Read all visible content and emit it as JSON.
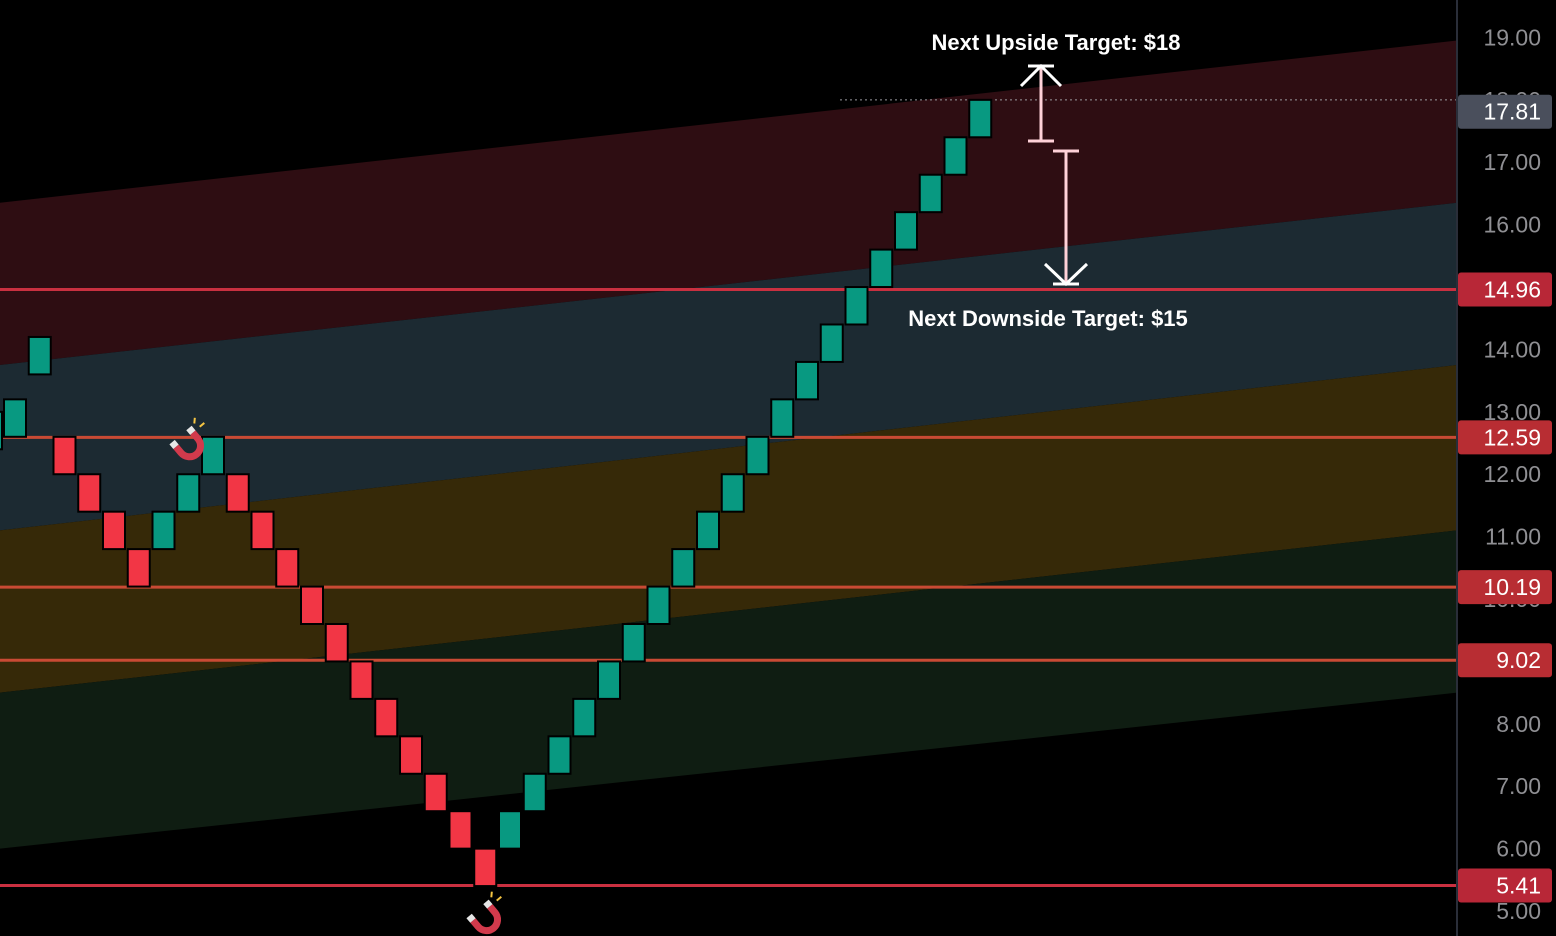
{
  "chart_data": {
    "type": "renko",
    "brick_size": 1,
    "y_range": [
      4.6,
      19.6
    ],
    "y_ticks": [
      "19.00",
      "18.00",
      "17.00",
      "16.00",
      "14.00",
      "13.00",
      "12.00",
      "11.00",
      "10.00",
      "8.00",
      "7.00",
      "6.00",
      "5.00"
    ],
    "y_tick_values": [
      19,
      18,
      17,
      16,
      14,
      13,
      12,
      11,
      10,
      8,
      7,
      6,
      5
    ],
    "current_price": {
      "label": "17.81",
      "value": 17.81,
      "color": "#4a4f5c"
    },
    "dotted_level": 18,
    "bands": [
      {
        "name": "red-band",
        "color": "#2e0d12",
        "lower_left": 13.75,
        "lower_right": 16.35,
        "upper_left": 16.35,
        "upper_right": 18.95
      },
      {
        "name": "teal-band",
        "color": "#1c2a32",
        "lower_left": 11.1,
        "lower_right": 13.75,
        "upper_left": 13.75,
        "upper_right": 16.35
      },
      {
        "name": "orange-band",
        "color": "#362908",
        "lower_left": 8.5,
        "lower_right": 11.1,
        "upper_left": 11.1,
        "upper_right": 13.75
      },
      {
        "name": "green-band",
        "color": "#0f1d12",
        "lower_left": 6.0,
        "lower_right": 8.5,
        "upper_left": 8.5,
        "upper_right": 11.1
      }
    ],
    "levels": [
      {
        "value": 14.96,
        "label": "14.96",
        "color": "#c93040"
      },
      {
        "value": 12.59,
        "label": "12.59",
        "color": "#c94a34"
      },
      {
        "value": 10.19,
        "label": "10.19",
        "color": "#c94a34"
      },
      {
        "value": 9.02,
        "label": "9.02",
        "color": "#c94a34"
      },
      {
        "value": 5.41,
        "label": "5.41",
        "color": "#c93040"
      }
    ],
    "bricks": [
      {
        "dir": "up",
        "low": 12.6
      },
      {
        "dir": "up",
        "low": 13.6
      },
      {
        "dir": "down",
        "low": 12.0
      },
      {
        "dir": "down",
        "low": 11.4
      },
      {
        "dir": "down",
        "low": 10.8
      },
      {
        "dir": "down",
        "low": 10.2
      },
      {
        "dir": "up",
        "low": 10.8
      },
      {
        "dir": "up",
        "low": 11.4
      },
      {
        "dir": "up",
        "low": 12.0
      },
      {
        "dir": "down",
        "low": 11.4
      },
      {
        "dir": "down",
        "low": 10.8
      },
      {
        "dir": "down",
        "low": 10.2
      },
      {
        "dir": "down",
        "low": 9.6
      },
      {
        "dir": "down",
        "low": 9.0
      },
      {
        "dir": "down",
        "low": 8.4
      },
      {
        "dir": "down",
        "low": 7.8
      },
      {
        "dir": "down",
        "low": 7.2
      },
      {
        "dir": "down",
        "low": 6.6
      },
      {
        "dir": "down",
        "low": 6.0
      },
      {
        "dir": "down",
        "low": 5.4
      },
      {
        "dir": "up",
        "low": 6.0
      },
      {
        "dir": "up",
        "low": 6.6
      },
      {
        "dir": "up",
        "low": 7.2
      },
      {
        "dir": "up",
        "low": 7.8
      },
      {
        "dir": "up",
        "low": 8.4
      },
      {
        "dir": "up",
        "low": 9.0
      },
      {
        "dir": "up",
        "low": 9.6
      },
      {
        "dir": "up",
        "low": 10.2
      },
      {
        "dir": "up",
        "low": 10.8
      },
      {
        "dir": "up",
        "low": 11.4
      },
      {
        "dir": "up",
        "low": 12.0
      },
      {
        "dir": "up",
        "low": 12.6
      },
      {
        "dir": "up",
        "low": 13.2
      },
      {
        "dir": "up",
        "low": 13.8
      },
      {
        "dir": "up",
        "low": 14.4
      },
      {
        "dir": "up",
        "low": 15.0
      },
      {
        "dir": "up",
        "low": 15.6
      },
      {
        "dir": "up",
        "low": 16.2
      },
      {
        "dir": "up",
        "low": 16.8
      },
      {
        "dir": "up",
        "low": 17.4
      }
    ],
    "colors": {
      "up": "#089981",
      "down": "#f23645"
    },
    "markers": [
      {
        "name": "magnet-icon-top",
        "brick_index": 7,
        "position": "above"
      },
      {
        "name": "magnet-icon-bottom",
        "brick_index": 19,
        "position": "below"
      }
    ],
    "annotations": {
      "upside": {
        "text": "Next Upside Target: $18",
        "value": 18
      },
      "downside": {
        "text": "Next Downside Target: $15",
        "value": 15
      }
    }
  }
}
